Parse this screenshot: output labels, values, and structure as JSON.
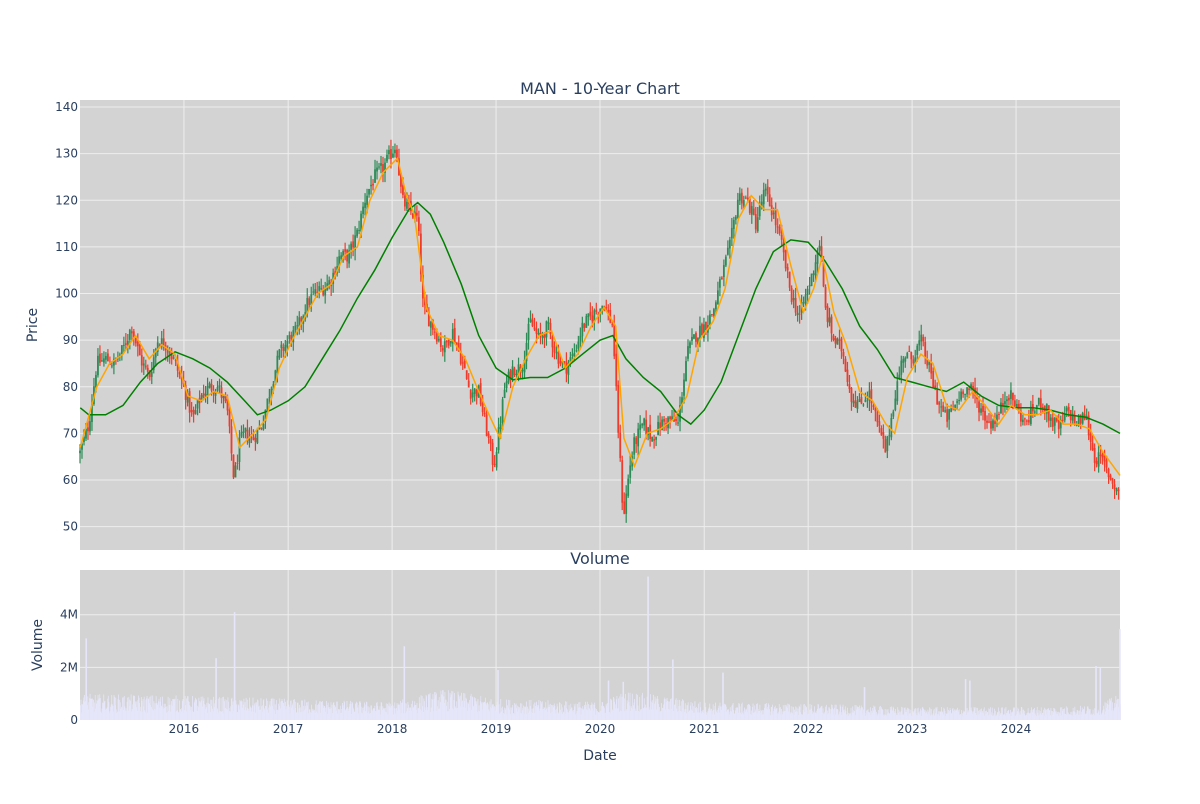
{
  "colors": {
    "panel_bg": "#d3d3d3",
    "grid": "#eeeeee",
    "text": "#2a3f5f",
    "up": "#2e8b57",
    "down": "#ef3b2c",
    "ma_short": "#ffa500",
    "ma_long": "#008000",
    "volume": "#e6e6fa"
  },
  "chart_data": [
    {
      "type": "candlestick",
      "title": "MAN - 10-Year Chart",
      "xlabel": "",
      "ylabel": "Price",
      "xlim": [
        "2015-01-01",
        "2024-12-31"
      ],
      "ylim": [
        45,
        141.5
      ],
      "x_tick_labels": [
        "2016",
        "2017",
        "2018",
        "2019",
        "2020",
        "2021",
        "2022",
        "2023",
        "2024"
      ],
      "y_tick_labels": [
        "50",
        "60",
        "70",
        "80",
        "90",
        "100",
        "110",
        "120",
        "130",
        "140"
      ],
      "grid": true,
      "legend": "none",
      "price_path": [
        [
          "2015-01-02",
          66
        ],
        [
          "2015-02-01",
          72
        ],
        [
          "2015-03-01",
          85
        ],
        [
          "2015-04-01",
          86
        ],
        [
          "2015-05-01",
          85
        ],
        [
          "2015-06-01",
          88
        ],
        [
          "2015-07-01",
          93
        ],
        [
          "2015-08-01",
          86
        ],
        [
          "2015-09-01",
          82
        ],
        [
          "2015-10-01",
          90
        ],
        [
          "2015-11-01",
          89
        ],
        [
          "2015-12-01",
          85
        ],
        [
          "2016-01-01",
          80
        ],
        [
          "2016-02-01",
          73
        ],
        [
          "2016-03-01",
          78
        ],
        [
          "2016-04-01",
          80
        ],
        [
          "2016-05-01",
          80
        ],
        [
          "2016-06-01",
          75
        ],
        [
          "2016-06-25",
          60
        ],
        [
          "2016-07-15",
          68
        ],
        [
          "2016-08-01",
          70
        ],
        [
          "2016-09-01",
          69
        ],
        [
          "2016-10-01",
          72
        ],
        [
          "2016-11-01",
          80
        ],
        [
          "2016-12-01",
          87
        ],
        [
          "2017-01-01",
          90
        ],
        [
          "2017-02-01",
          92
        ],
        [
          "2017-03-01",
          97
        ],
        [
          "2017-04-01",
          100
        ],
        [
          "2017-05-01",
          101
        ],
        [
          "2017-06-01",
          103
        ],
        [
          "2017-07-01",
          108
        ],
        [
          "2017-08-01",
          108
        ],
        [
          "2017-09-01",
          113
        ],
        [
          "2017-10-01",
          121
        ],
        [
          "2017-11-01",
          125
        ],
        [
          "2017-12-01",
          127
        ],
        [
          "2018-01-15",
          132
        ],
        [
          "2018-02-05",
          120
        ],
        [
          "2018-03-01",
          118
        ],
        [
          "2018-04-01",
          116
        ],
        [
          "2018-04-20",
          97
        ],
        [
          "2018-05-15",
          94
        ],
        [
          "2018-06-01",
          92
        ],
        [
          "2018-07-01",
          88
        ],
        [
          "2018-08-01",
          92
        ],
        [
          "2018-09-01",
          86
        ],
        [
          "2018-10-01",
          79
        ],
        [
          "2018-11-01",
          79
        ],
        [
          "2018-12-01",
          70
        ],
        [
          "2018-12-24",
          63
        ],
        [
          "2019-01-15",
          72
        ],
        [
          "2019-02-01",
          80
        ],
        [
          "2019-03-01",
          84
        ],
        [
          "2019-04-01",
          84
        ],
        [
          "2019-05-01",
          94
        ],
        [
          "2019-06-01",
          90
        ],
        [
          "2019-07-01",
          93
        ],
        [
          "2019-08-01",
          87
        ],
        [
          "2019-09-01",
          84
        ],
        [
          "2019-10-01",
          87
        ],
        [
          "2019-11-01",
          93
        ],
        [
          "2019-12-01",
          95
        ],
        [
          "2020-01-15",
          98
        ],
        [
          "2020-02-15",
          93
        ],
        [
          "2020-03-01",
          75
        ],
        [
          "2020-03-23",
          52
        ],
        [
          "2020-04-15",
          63
        ],
        [
          "2020-05-01",
          68
        ],
        [
          "2020-06-01",
          72
        ],
        [
          "2020-07-01",
          69
        ],
        [
          "2020-08-01",
          72
        ],
        [
          "2020-09-01",
          73
        ],
        [
          "2020-10-01",
          72
        ],
        [
          "2020-11-01",
          87
        ],
        [
          "2020-12-01",
          91
        ],
        [
          "2021-01-01",
          93
        ],
        [
          "2021-02-01",
          96
        ],
        [
          "2021-03-01",
          103
        ],
        [
          "2021-04-01",
          110
        ],
        [
          "2021-05-01",
          121
        ],
        [
          "2021-06-01",
          120
        ],
        [
          "2021-07-01",
          115
        ],
        [
          "2021-08-01",
          122
        ],
        [
          "2021-09-01",
          117
        ],
        [
          "2021-10-01",
          110
        ],
        [
          "2021-11-01",
          100
        ],
        [
          "2021-12-01",
          95
        ],
        [
          "2022-01-15",
          104
        ],
        [
          "2022-02-10",
          111
        ],
        [
          "2022-03-01",
          97
        ],
        [
          "2022-04-01",
          90
        ],
        [
          "2022-05-01",
          88
        ],
        [
          "2022-06-01",
          78
        ],
        [
          "2022-07-01",
          76
        ],
        [
          "2022-08-01",
          79
        ],
        [
          "2022-09-01",
          72
        ],
        [
          "2022-10-01",
          66
        ],
        [
          "2022-11-01",
          78
        ],
        [
          "2022-12-01",
          87
        ],
        [
          "2023-01-01",
          86
        ],
        [
          "2023-02-01",
          90
        ],
        [
          "2023-03-01",
          84
        ],
        [
          "2023-04-01",
          77
        ],
        [
          "2023-05-01",
          73
        ],
        [
          "2023-06-01",
          76
        ],
        [
          "2023-07-01",
          80
        ],
        [
          "2023-08-01",
          79
        ],
        [
          "2023-09-01",
          75
        ],
        [
          "2023-10-01",
          72
        ],
        [
          "2023-11-01",
          74
        ],
        [
          "2023-12-01",
          79
        ],
        [
          "2024-01-01",
          76
        ],
        [
          "2024-02-01",
          72
        ],
        [
          "2024-03-01",
          75
        ],
        [
          "2024-04-01",
          77
        ],
        [
          "2024-05-01",
          73
        ],
        [
          "2024-06-01",
          71
        ],
        [
          "2024-07-01",
          75
        ],
        [
          "2024-08-01",
          72
        ],
        [
          "2024-09-01",
          74
        ],
        [
          "2024-10-01",
          65
        ],
        [
          "2024-11-01",
          64
        ],
        [
          "2024-12-01",
          60
        ],
        [
          "2024-12-31",
          57
        ]
      ],
      "moving_average_short": [
        [
          "2015-01-02",
          67
        ],
        [
          "2015-03-01",
          80
        ],
        [
          "2015-04-15",
          85
        ],
        [
          "2015-06-01",
          87
        ],
        [
          "2015-07-15",
          91
        ],
        [
          "2015-09-01",
          86
        ],
        [
          "2015-10-15",
          89
        ],
        [
          "2015-12-01",
          87
        ],
        [
          "2016-01-15",
          78
        ],
        [
          "2016-03-01",
          77
        ],
        [
          "2016-04-15",
          79
        ],
        [
          "2016-06-01",
          78
        ],
        [
          "2016-07-15",
          67
        ],
        [
          "2016-09-01",
          70
        ],
        [
          "2016-10-15",
          73
        ],
        [
          "2016-12-01",
          84
        ],
        [
          "2017-01-15",
          90
        ],
        [
          "2017-03-01",
          95
        ],
        [
          "2017-04-15",
          100
        ],
        [
          "2017-06-01",
          102
        ],
        [
          "2017-07-15",
          108
        ],
        [
          "2017-09-01",
          110
        ],
        [
          "2017-10-15",
          120
        ],
        [
          "2017-12-01",
          126
        ],
        [
          "2018-01-20",
          129
        ],
        [
          "2018-02-20",
          121
        ],
        [
          "2018-03-20",
          117
        ],
        [
          "2018-05-01",
          97
        ],
        [
          "2018-06-15",
          91
        ],
        [
          "2018-08-01",
          90
        ],
        [
          "2018-09-15",
          86
        ],
        [
          "2018-11-01",
          79
        ],
        [
          "2018-12-15",
          73
        ],
        [
          "2019-01-15",
          69
        ],
        [
          "2019-03-01",
          80
        ],
        [
          "2019-04-15",
          86
        ],
        [
          "2019-06-01",
          91
        ],
        [
          "2019-07-15",
          92
        ],
        [
          "2019-09-01",
          84
        ],
        [
          "2019-10-15",
          87
        ],
        [
          "2019-12-01",
          93
        ],
        [
          "2020-01-15",
          97
        ],
        [
          "2020-02-25",
          93
        ],
        [
          "2020-03-25",
          69
        ],
        [
          "2020-05-01",
          63
        ],
        [
          "2020-06-15",
          70
        ],
        [
          "2020-08-01",
          71
        ],
        [
          "2020-09-15",
          73
        ],
        [
          "2020-11-01",
          78
        ],
        [
          "2020-12-15",
          90
        ],
        [
          "2021-02-01",
          94
        ],
        [
          "2021-03-15",
          101
        ],
        [
          "2021-05-01",
          116
        ],
        [
          "2021-06-15",
          121
        ],
        [
          "2021-08-01",
          118
        ],
        [
          "2021-09-15",
          118
        ],
        [
          "2021-11-01",
          106
        ],
        [
          "2021-12-15",
          96
        ],
        [
          "2022-01-20",
          101
        ],
        [
          "2022-02-20",
          108
        ],
        [
          "2022-04-01",
          96
        ],
        [
          "2022-05-15",
          89
        ],
        [
          "2022-07-01",
          79
        ],
        [
          "2022-08-15",
          77
        ],
        [
          "2022-10-01",
          72
        ],
        [
          "2022-11-01",
          70
        ],
        [
          "2022-12-15",
          82
        ],
        [
          "2023-02-01",
          87
        ],
        [
          "2023-03-15",
          85
        ],
        [
          "2023-05-01",
          76
        ],
        [
          "2023-06-15",
          75
        ],
        [
          "2023-08-01",
          79
        ],
        [
          "2023-09-15",
          76
        ],
        [
          "2023-11-01",
          72
        ],
        [
          "2023-12-15",
          76
        ],
        [
          "2024-02-01",
          74
        ],
        [
          "2024-03-15",
          74
        ],
        [
          "2024-05-01",
          75
        ],
        [
          "2024-06-15",
          72
        ],
        [
          "2024-08-01",
          72
        ],
        [
          "2024-09-15",
          71
        ],
        [
          "2024-11-01",
          66
        ],
        [
          "2024-12-31",
          61
        ]
      ],
      "moving_average_long": [
        [
          "2015-01-02",
          75.5
        ],
        [
          "2015-02-01",
          74
        ],
        [
          "2015-04-01",
          74
        ],
        [
          "2015-06-01",
          76
        ],
        [
          "2015-08-01",
          81
        ],
        [
          "2015-10-01",
          85
        ],
        [
          "2015-12-01",
          87.5
        ],
        [
          "2016-02-01",
          86
        ],
        [
          "2016-04-01",
          84
        ],
        [
          "2016-06-01",
          81
        ],
        [
          "2016-08-01",
          77
        ],
        [
          "2016-09-15",
          74
        ],
        [
          "2016-11-01",
          75
        ],
        [
          "2017-01-01",
          77
        ],
        [
          "2017-03-01",
          80
        ],
        [
          "2017-05-01",
          86
        ],
        [
          "2017-07-01",
          92
        ],
        [
          "2017-09-01",
          99
        ],
        [
          "2017-11-01",
          105
        ],
        [
          "2018-01-01",
          112
        ],
        [
          "2018-03-01",
          118
        ],
        [
          "2018-04-01",
          119.5
        ],
        [
          "2018-05-15",
          117
        ],
        [
          "2018-07-01",
          111
        ],
        [
          "2018-09-01",
          102
        ],
        [
          "2018-11-01",
          91
        ],
        [
          "2019-01-01",
          84
        ],
        [
          "2019-03-01",
          81.5
        ],
        [
          "2019-05-01",
          82
        ],
        [
          "2019-07-01",
          82
        ],
        [
          "2019-09-01",
          84
        ],
        [
          "2019-11-01",
          87
        ],
        [
          "2020-01-01",
          90
        ],
        [
          "2020-02-15",
          91
        ],
        [
          "2020-04-01",
          86
        ],
        [
          "2020-06-01",
          82
        ],
        [
          "2020-08-01",
          79
        ],
        [
          "2020-10-01",
          74
        ],
        [
          "2020-11-15",
          72
        ],
        [
          "2021-01-01",
          75
        ],
        [
          "2021-03-01",
          81
        ],
        [
          "2021-05-01",
          91
        ],
        [
          "2021-07-01",
          101
        ],
        [
          "2021-09-01",
          109
        ],
        [
          "2021-11-01",
          111.5
        ],
        [
          "2022-01-01",
          111
        ],
        [
          "2022-03-01",
          107
        ],
        [
          "2022-05-01",
          101
        ],
        [
          "2022-07-01",
          93
        ],
        [
          "2022-09-01",
          88
        ],
        [
          "2022-11-01",
          82
        ],
        [
          "2023-01-01",
          81
        ],
        [
          "2023-03-01",
          80
        ],
        [
          "2023-05-01",
          79
        ],
        [
          "2023-07-01",
          81
        ],
        [
          "2023-09-01",
          78
        ],
        [
          "2023-11-01",
          76
        ],
        [
          "2024-01-01",
          75.5
        ],
        [
          "2024-03-01",
          75.5
        ],
        [
          "2024-05-01",
          75
        ],
        [
          "2024-07-01",
          74
        ],
        [
          "2024-09-01",
          73.5
        ],
        [
          "2024-11-01",
          72
        ],
        [
          "2024-12-31",
          70
        ]
      ]
    },
    {
      "type": "bar",
      "title": "Volume",
      "xlabel": "Date",
      "ylabel": "Volume",
      "xlim": [
        "2015-01-01",
        "2024-12-31"
      ],
      "ylim": [
        0,
        5700000
      ],
      "x_tick_labels": [
        "2016",
        "2017",
        "2018",
        "2019",
        "2020",
        "2021",
        "2022",
        "2023",
        "2024"
      ],
      "y_tick_labels": [
        "0",
        "2M",
        "4M"
      ],
      "grid": true,
      "legend": "none",
      "baseline_volume": [
        [
          "2015-01-01",
          800000
        ],
        [
          "2016-01-01",
          750000
        ],
        [
          "2017-01-01",
          650000
        ],
        [
          "2018-01-01",
          550000
        ],
        [
          "2018-07-01",
          950000
        ],
        [
          "2019-01-01",
          650000
        ],
        [
          "2020-01-01",
          550000
        ],
        [
          "2020-04-01",
          900000
        ],
        [
          "2021-01-01",
          550000
        ],
        [
          "2022-01-01",
          500000
        ],
        [
          "2023-01-01",
          400000
        ],
        [
          "2024-01-01",
          400000
        ],
        [
          "2024-10-01",
          450000
        ],
        [
          "2024-12-31",
          800000
        ]
      ],
      "volume_spikes": [
        [
          "2015-01-20",
          3100000
        ],
        [
          "2016-06-24",
          4100000
        ],
        [
          "2016-04-20",
          2350000
        ],
        [
          "2018-02-10",
          2800000
        ],
        [
          "2019-01-05",
          1900000
        ],
        [
          "2020-01-28",
          1500000
        ],
        [
          "2020-03-20",
          1450000
        ],
        [
          "2020-06-15",
          5450000
        ],
        [
          "2020-09-10",
          2300000
        ],
        [
          "2021-03-05",
          1800000
        ],
        [
          "2022-07-15",
          1250000
        ],
        [
          "2023-07-05",
          1550000
        ],
        [
          "2023-07-20",
          1500000
        ],
        [
          "2024-10-05",
          2050000
        ],
        [
          "2024-10-20",
          2000000
        ],
        [
          "2024-12-28",
          3450000
        ]
      ]
    }
  ]
}
